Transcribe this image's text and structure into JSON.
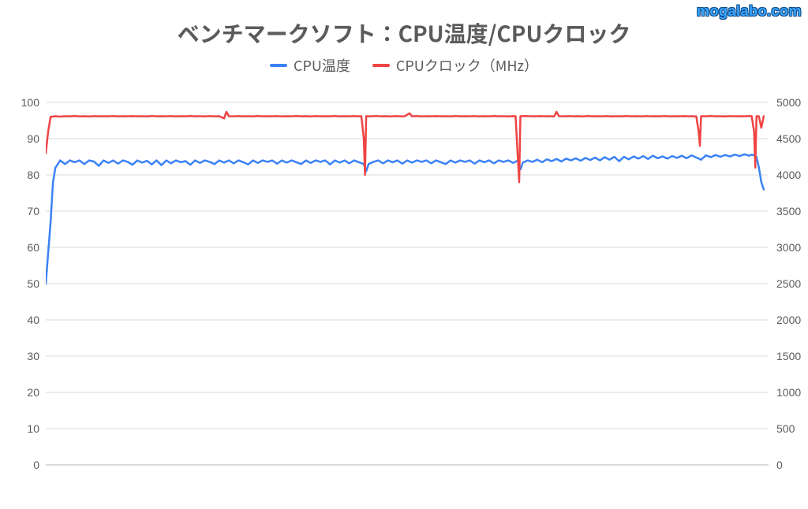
{
  "watermark": "mogalabo.com",
  "chart": {
    "type": "line-dual-axis",
    "title": "ベンチマークソフト：CPU温度/CPUクロック",
    "title_fontsize": 28,
    "title_color": "#5b5b5b",
    "background_color": "#ffffff",
    "grid_color": "#d9d9d9",
    "baseline_color": "#b5b5b5",
    "label_fontsize": 14,
    "label_color": "#5b5b5b",
    "x_range": [
      0,
      300
    ],
    "axis_left": {
      "label": "CPU温度",
      "min": 0,
      "max": 100,
      "tick_step": 10,
      "ticks": [
        0,
        10,
        20,
        30,
        40,
        50,
        60,
        70,
        80,
        90,
        100
      ]
    },
    "axis_right": {
      "label": "CPUクロック（MHz）",
      "min": 0,
      "max": 5000,
      "tick_step": 500,
      "ticks": [
        0,
        500,
        1000,
        1500,
        2000,
        2500,
        3000,
        3500,
        4000,
        4500,
        5000
      ]
    },
    "legend_position": "top-center",
    "series": [
      {
        "name": "CPU温度",
        "color": "#3b82f6",
        "axis": "left",
        "line_width": 2.5,
        "data": [
          [
            0,
            50
          ],
          [
            2,
            67
          ],
          [
            3,
            78
          ],
          [
            4,
            82
          ],
          [
            6,
            84
          ],
          [
            8,
            83
          ],
          [
            10,
            84
          ],
          [
            12,
            83.5
          ],
          [
            14,
            84
          ],
          [
            16,
            83
          ],
          [
            18,
            84
          ],
          [
            20,
            83.7
          ],
          [
            22,
            82.5
          ],
          [
            24,
            84
          ],
          [
            26,
            83.3
          ],
          [
            28,
            84
          ],
          [
            30,
            83.1
          ],
          [
            32,
            84
          ],
          [
            34,
            83.6
          ],
          [
            36,
            82.8
          ],
          [
            38,
            84
          ],
          [
            40,
            83.4
          ],
          [
            42,
            83.9
          ],
          [
            44,
            82.9
          ],
          [
            46,
            84
          ],
          [
            48,
            82.7
          ],
          [
            50,
            84
          ],
          [
            52,
            83.2
          ],
          [
            54,
            84
          ],
          [
            56,
            83.5
          ],
          [
            58,
            83.8
          ],
          [
            60,
            82.8
          ],
          [
            62,
            84
          ],
          [
            64,
            83.3
          ],
          [
            66,
            84
          ],
          [
            68,
            83.6
          ],
          [
            70,
            83.0
          ],
          [
            72,
            84
          ],
          [
            74,
            83.4
          ],
          [
            76,
            84
          ],
          [
            78,
            83.2
          ],
          [
            80,
            84
          ],
          [
            82,
            83.5
          ],
          [
            84,
            82.9
          ],
          [
            86,
            84
          ],
          [
            88,
            83.3
          ],
          [
            90,
            84
          ],
          [
            92,
            83.6
          ],
          [
            94,
            84
          ],
          [
            96,
            83.1
          ],
          [
            98,
            84
          ],
          [
            100,
            83.4
          ],
          [
            102,
            84
          ],
          [
            104,
            83.5
          ],
          [
            106,
            83
          ],
          [
            108,
            84
          ],
          [
            110,
            83.3
          ],
          [
            112,
            84
          ],
          [
            114,
            83.6
          ],
          [
            116,
            84
          ],
          [
            118,
            82.9
          ],
          [
            120,
            84
          ],
          [
            122,
            83.4
          ],
          [
            124,
            84
          ],
          [
            126,
            83.2
          ],
          [
            128,
            84
          ],
          [
            130,
            83.5
          ],
          [
            132,
            83.0
          ],
          [
            133,
            81
          ],
          [
            134,
            83
          ],
          [
            136,
            83.6
          ],
          [
            138,
            84
          ],
          [
            140,
            83.2
          ],
          [
            142,
            84
          ],
          [
            144,
            83.5
          ],
          [
            146,
            84
          ],
          [
            148,
            83.1
          ],
          [
            150,
            84
          ],
          [
            152,
            83.4
          ],
          [
            154,
            84
          ],
          [
            156,
            83.6
          ],
          [
            158,
            84
          ],
          [
            160,
            83.2
          ],
          [
            162,
            84
          ],
          [
            164,
            83.5
          ],
          [
            166,
            83
          ],
          [
            168,
            84
          ],
          [
            170,
            83.4
          ],
          [
            172,
            84
          ],
          [
            174,
            83.6
          ],
          [
            176,
            84
          ],
          [
            178,
            83.1
          ],
          [
            180,
            84
          ],
          [
            182,
            83.5
          ],
          [
            184,
            84
          ],
          [
            186,
            83.2
          ],
          [
            188,
            84
          ],
          [
            190,
            83.6
          ],
          [
            192,
            84
          ],
          [
            194,
            83.3
          ],
          [
            196,
            84
          ],
          [
            197,
            81.5
          ],
          [
            198,
            83.4
          ],
          [
            200,
            84
          ],
          [
            202,
            83.6
          ],
          [
            204,
            84.2
          ],
          [
            206,
            83.5
          ],
          [
            208,
            84.3
          ],
          [
            210,
            83.8
          ],
          [
            212,
            84.4
          ],
          [
            214,
            83.7
          ],
          [
            216,
            84.5
          ],
          [
            218,
            84
          ],
          [
            220,
            84.6
          ],
          [
            222,
            83.9
          ],
          [
            224,
            84.7
          ],
          [
            226,
            84.1
          ],
          [
            228,
            84.8
          ],
          [
            230,
            84
          ],
          [
            232,
            84.9
          ],
          [
            234,
            84.2
          ],
          [
            236,
            85
          ],
          [
            238,
            83.8
          ],
          [
            240,
            85
          ],
          [
            242,
            84.3
          ],
          [
            244,
            85.1
          ],
          [
            246,
            84.5
          ],
          [
            248,
            85.2
          ],
          [
            250,
            84.4
          ],
          [
            252,
            85.3
          ],
          [
            254,
            84.6
          ],
          [
            256,
            85.1
          ],
          [
            258,
            84.5
          ],
          [
            260,
            85.2
          ],
          [
            262,
            84.7
          ],
          [
            264,
            85.3
          ],
          [
            266,
            84.6
          ],
          [
            268,
            85.4
          ],
          [
            270,
            84.8
          ],
          [
            272,
            84.2
          ],
          [
            274,
            85.4
          ],
          [
            276,
            84.9
          ],
          [
            278,
            85.5
          ],
          [
            280,
            85
          ],
          [
            282,
            85.5
          ],
          [
            284,
            85.1
          ],
          [
            286,
            85.6
          ],
          [
            288,
            85.2
          ],
          [
            290,
            85.7
          ],
          [
            292,
            85.3
          ],
          [
            293,
            85.6
          ],
          [
            294,
            85.4
          ],
          [
            295,
            85
          ],
          [
            296,
            82
          ],
          [
            297,
            78
          ],
          [
            298,
            76
          ]
        ]
      },
      {
        "name": "CPUクロック（MHz）",
        "color": "#ef4444",
        "axis": "right",
        "line_width": 2.5,
        "data": [
          [
            0,
            4300
          ],
          [
            1,
            4600
          ],
          [
            2,
            4800
          ],
          [
            4,
            4810
          ],
          [
            6,
            4805
          ],
          [
            8,
            4810
          ],
          [
            10,
            4808
          ],
          [
            12,
            4812
          ],
          [
            14,
            4807
          ],
          [
            16,
            4810
          ],
          [
            18,
            4806
          ],
          [
            20,
            4811
          ],
          [
            22,
            4808
          ],
          [
            24,
            4810
          ],
          [
            26,
            4809
          ],
          [
            28,
            4812
          ],
          [
            30,
            4807
          ],
          [
            32,
            4810
          ],
          [
            34,
            4808
          ],
          [
            36,
            4811
          ],
          [
            38,
            4809
          ],
          [
            40,
            4810
          ],
          [
            42,
            4807
          ],
          [
            44,
            4812
          ],
          [
            46,
            4808
          ],
          [
            48,
            4810
          ],
          [
            50,
            4809
          ],
          [
            52,
            4811
          ],
          [
            54,
            4807
          ],
          [
            56,
            4810
          ],
          [
            58,
            4808
          ],
          [
            60,
            4812
          ],
          [
            62,
            4809
          ],
          [
            64,
            4810
          ],
          [
            66,
            4807
          ],
          [
            68,
            4811
          ],
          [
            70,
            4808
          ],
          [
            72,
            4810
          ],
          [
            74,
            4780
          ],
          [
            75,
            4870
          ],
          [
            76,
            4810
          ],
          [
            78,
            4808
          ],
          [
            80,
            4811
          ],
          [
            82,
            4809
          ],
          [
            84,
            4810
          ],
          [
            86,
            4807
          ],
          [
            88,
            4812
          ],
          [
            90,
            4808
          ],
          [
            92,
            4810
          ],
          [
            94,
            4809
          ],
          [
            96,
            4811
          ],
          [
            98,
            4807
          ],
          [
            100,
            4810
          ],
          [
            102,
            4808
          ],
          [
            104,
            4812
          ],
          [
            106,
            4809
          ],
          [
            108,
            4810
          ],
          [
            110,
            4807
          ],
          [
            112,
            4811
          ],
          [
            114,
            4808
          ],
          [
            116,
            4810
          ],
          [
            118,
            4809
          ],
          [
            120,
            4812
          ],
          [
            122,
            4807
          ],
          [
            124,
            4810
          ],
          [
            126,
            4808
          ],
          [
            128,
            4811
          ],
          [
            130,
            4809
          ],
          [
            131,
            4810
          ],
          [
            132,
            4500
          ],
          [
            132.5,
            4000
          ],
          [
            133,
            4810
          ],
          [
            135,
            4808
          ],
          [
            137,
            4812
          ],
          [
            139,
            4809
          ],
          [
            141,
            4810
          ],
          [
            143,
            4807
          ],
          [
            145,
            4811
          ],
          [
            147,
            4808
          ],
          [
            149,
            4810
          ],
          [
            151,
            4850
          ],
          [
            152,
            4809
          ],
          [
            154,
            4812
          ],
          [
            156,
            4807
          ],
          [
            158,
            4810
          ],
          [
            160,
            4808
          ],
          [
            162,
            4811
          ],
          [
            164,
            4809
          ],
          [
            166,
            4810
          ],
          [
            168,
            4807
          ],
          [
            170,
            4812
          ],
          [
            172,
            4808
          ],
          [
            174,
            4810
          ],
          [
            176,
            4809
          ],
          [
            178,
            4811
          ],
          [
            180,
            4807
          ],
          [
            182,
            4810
          ],
          [
            184,
            4808
          ],
          [
            186,
            4812
          ],
          [
            188,
            4809
          ],
          [
            190,
            4810
          ],
          [
            192,
            4807
          ],
          [
            194,
            4811
          ],
          [
            195,
            4810
          ],
          [
            196,
            4200
          ],
          [
            196.5,
            3900
          ],
          [
            197,
            4810
          ],
          [
            199,
            4812
          ],
          [
            201,
            4810
          ],
          [
            203,
            4808
          ],
          [
            205,
            4811
          ],
          [
            207,
            4809
          ],
          [
            209,
            4810
          ],
          [
            211,
            4807
          ],
          [
            212,
            4870
          ],
          [
            213,
            4810
          ],
          [
            215,
            4808
          ],
          [
            217,
            4811
          ],
          [
            219,
            4809
          ],
          [
            221,
            4810
          ],
          [
            223,
            4807
          ],
          [
            225,
            4812
          ],
          [
            227,
            4808
          ],
          [
            229,
            4810
          ],
          [
            231,
            4809
          ],
          [
            233,
            4811
          ],
          [
            235,
            4807
          ],
          [
            237,
            4810
          ],
          [
            239,
            4808
          ],
          [
            241,
            4812
          ],
          [
            243,
            4809
          ],
          [
            245,
            4810
          ],
          [
            247,
            4807
          ],
          [
            249,
            4811
          ],
          [
            251,
            4808
          ],
          [
            253,
            4810
          ],
          [
            255,
            4809
          ],
          [
            257,
            4812
          ],
          [
            259,
            4807
          ],
          [
            261,
            4810
          ],
          [
            263,
            4808
          ],
          [
            265,
            4811
          ],
          [
            267,
            4809
          ],
          [
            269,
            4810
          ],
          [
            270,
            4807
          ],
          [
            271,
            4600
          ],
          [
            271.5,
            4400
          ],
          [
            272,
            4810
          ],
          [
            274,
            4808
          ],
          [
            276,
            4812
          ],
          [
            278,
            4809
          ],
          [
            280,
            4810
          ],
          [
            282,
            4807
          ],
          [
            284,
            4811
          ],
          [
            286,
            4808
          ],
          [
            288,
            4810
          ],
          [
            290,
            4809
          ],
          [
            292,
            4812
          ],
          [
            293,
            4810
          ],
          [
            294,
            4600
          ],
          [
            294.5,
            4100
          ],
          [
            295,
            4810
          ],
          [
            296,
            4808
          ],
          [
            297,
            4650
          ],
          [
            298,
            4810
          ]
        ]
      }
    ]
  }
}
